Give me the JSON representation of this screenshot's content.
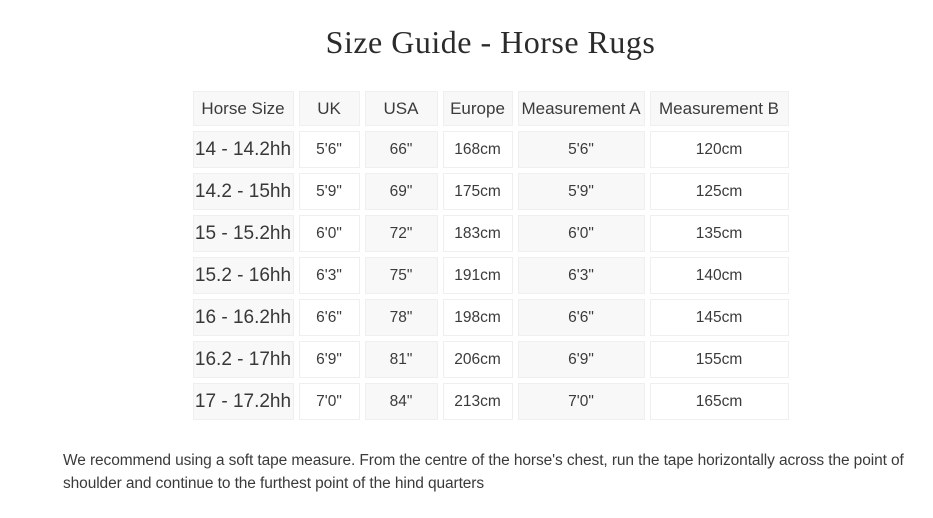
{
  "page": {
    "title": "Size Guide - Horse Rugs"
  },
  "table": {
    "columns": [
      "Horse Size",
      "UK",
      "USA",
      "Europe",
      "Measurement A",
      "Measurement B"
    ],
    "rows": [
      [
        "14 - 14.2hh",
        "5'6\"",
        "66\"",
        "168cm",
        "5'6\"",
        "120cm"
      ],
      [
        "14.2 - 15hh",
        "5'9\"",
        "69\"",
        "175cm",
        "5'9\"",
        "125cm"
      ],
      [
        "15 - 15.2hh",
        "6'0\"",
        "72\"",
        "183cm",
        "6'0\"",
        "135cm"
      ],
      [
        "15.2 - 16hh",
        "6'3\"",
        "75\"",
        "191cm",
        "6'3\"",
        "140cm"
      ],
      [
        "16 - 16.2hh",
        "6'6\"",
        "78\"",
        "198cm",
        "6'6\"",
        "145cm"
      ],
      [
        "16.2 - 17hh",
        "6'9\"",
        "81\"",
        "206cm",
        "6'9\"",
        "155cm"
      ],
      [
        "17 - 17.2hh",
        "7'0\"",
        "84\"",
        "213cm",
        "7'0\"",
        "165cm"
      ]
    ]
  },
  "note": {
    "text": "We recommend using a soft tape measure. From the centre of the horse's chest, run the tape horizontally across the point of shoulder and continue to the furthest point of the hind quarters"
  },
  "colors": {
    "cell_shaded": "#f8f8f8",
    "cell_plain": "#ffffff",
    "cell_border": "#efefef",
    "table_text": "#3b3b3b",
    "title_text": "#2b2b2b",
    "note_text": "#3a3a3a"
  }
}
